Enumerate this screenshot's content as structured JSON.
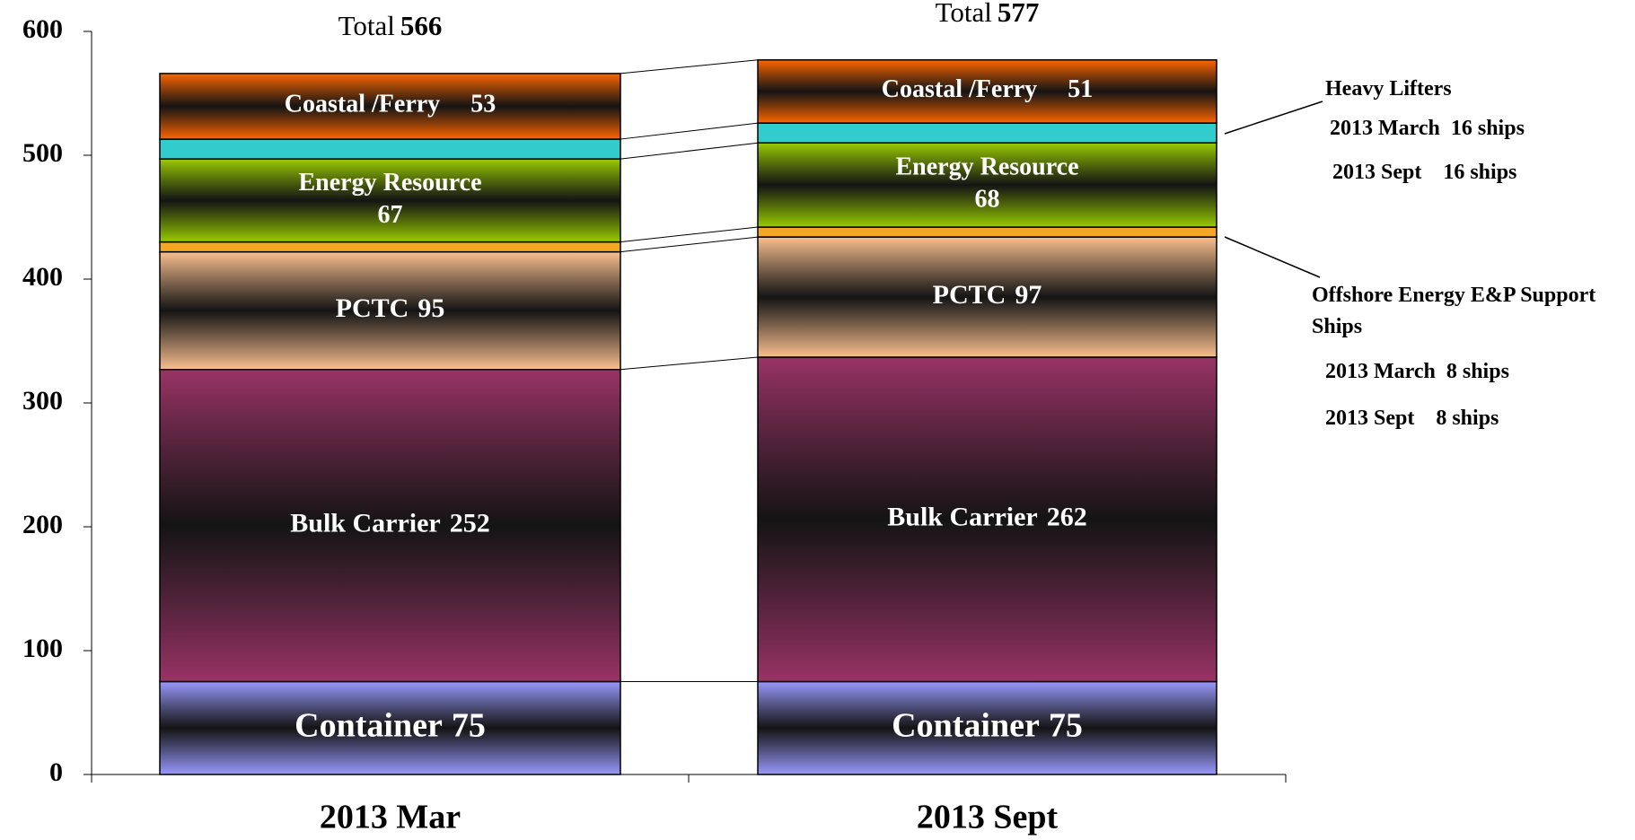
{
  "chart_data": {
    "type": "stacked-bar",
    "categories": [
      "2013 Mar",
      "2013 Sept"
    ],
    "series": [
      {
        "name": "Container",
        "color": "#9999ff",
        "values": [
          75,
          75
        ]
      },
      {
        "name": "Bulk Carrier",
        "color": "#993366",
        "values": [
          252,
          262
        ]
      },
      {
        "name": "PCTC",
        "color": "#fac090",
        "values": [
          95,
          97
        ]
      },
      {
        "name": "Offshore Energy E&P Support Ships",
        "color": "#f5a623",
        "values": [
          8,
          8
        ]
      },
      {
        "name": "Energy Resource",
        "color": "#99cc00",
        "values": [
          67,
          68
        ]
      },
      {
        "name": "Heavy Lifters",
        "color": "#33cccc",
        "values": [
          16,
          16
        ]
      },
      {
        "name": "Coastal /Ferry",
        "color": "#ff6600",
        "values": [
          53,
          51
        ]
      }
    ],
    "total_label": "Total",
    "totals": [
      566,
      577
    ],
    "annotations": [
      {
        "series": 5,
        "lines": [
          "2013 March  16 ships",
          "2013 Sept    16 ships"
        ]
      },
      {
        "series": 3,
        "lines": [
          "2013 March  8 ships",
          "2013 Sept    8 ships"
        ]
      }
    ],
    "ylim": [
      0,
      600
    ],
    "yticks": [
      0,
      100,
      200,
      300,
      400,
      500,
      600
    ]
  }
}
